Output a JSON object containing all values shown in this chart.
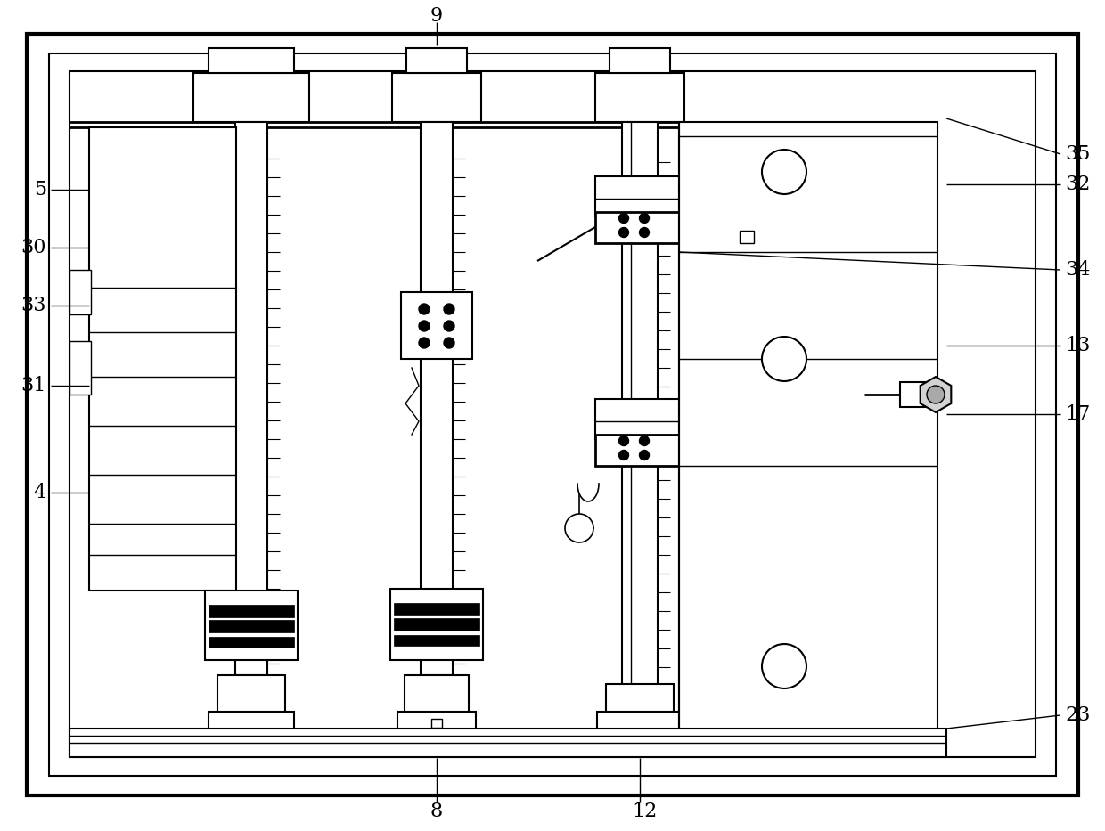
{
  "bg_color": "#ffffff",
  "line_color": "#000000",
  "fig_width": 12.4,
  "fig_height": 9.33,
  "dpi": 100
}
